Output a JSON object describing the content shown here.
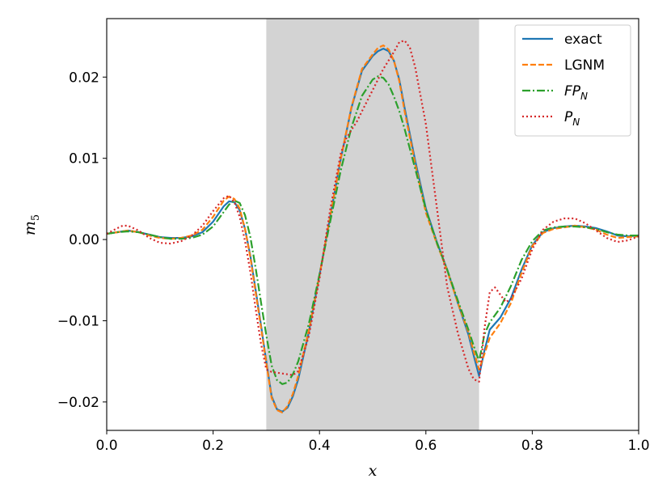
{
  "chart_data": {
    "type": "line",
    "xlabel": "x",
    "ylabel": "m5",
    "ylabel_main": "m",
    "ylabel_sub": "5",
    "xlim": [
      0.0,
      1.0
    ],
    "ylim": [
      -0.0235,
      0.0272
    ],
    "xticks": [
      0.0,
      0.2,
      0.4,
      0.6,
      0.8,
      1.0
    ],
    "xtick_labels": [
      "0.0",
      "0.2",
      "0.4",
      "0.6",
      "0.8",
      "1.0"
    ],
    "yticks": [
      -0.02,
      -0.01,
      0.0,
      0.01,
      0.02
    ],
    "ytick_labels": [
      "−0.02",
      "−0.01",
      "0.00",
      "0.01",
      "0.02"
    ],
    "shaded_region": {
      "x": [
        0.3,
        0.7
      ],
      "color": "#d3d3d3"
    },
    "legend_position": "top-right",
    "grid": false,
    "series": [
      {
        "name": "exact",
        "color": "#1f77b4",
        "style": "solid",
        "x": [
          0.0,
          0.02,
          0.04,
          0.06,
          0.08,
          0.1,
          0.12,
          0.14,
          0.16,
          0.18,
          0.2,
          0.22,
          0.23,
          0.24,
          0.25,
          0.26,
          0.27,
          0.28,
          0.29,
          0.3,
          0.31,
          0.32,
          0.33,
          0.34,
          0.35,
          0.36,
          0.38,
          0.4,
          0.42,
          0.44,
          0.46,
          0.48,
          0.5,
          0.51,
          0.52,
          0.53,
          0.54,
          0.55,
          0.56,
          0.58,
          0.6,
          0.62,
          0.64,
          0.66,
          0.68,
          0.69,
          0.7,
          0.71,
          0.72,
          0.74,
          0.76,
          0.78,
          0.8,
          0.82,
          0.84,
          0.86,
          0.88,
          0.9,
          0.92,
          0.94,
          0.96,
          0.98,
          1.0
        ],
        "y": [
          0.0007,
          0.0009,
          0.0011,
          0.0009,
          0.0006,
          0.0003,
          0.0002,
          0.0002,
          0.0004,
          0.0009,
          0.0022,
          0.0041,
          0.0047,
          0.0046,
          0.0036,
          0.0013,
          -0.002,
          -0.0062,
          -0.0105,
          -0.015,
          -0.0193,
          -0.0209,
          -0.0212,
          -0.0207,
          -0.0193,
          -0.0172,
          -0.0114,
          -0.0044,
          0.0028,
          0.0099,
          0.0162,
          0.0208,
          0.0226,
          0.0232,
          0.0235,
          0.0232,
          0.022,
          0.0197,
          0.0162,
          0.0097,
          0.0038,
          -0.0002,
          -0.0037,
          -0.0078,
          -0.0117,
          -0.0143,
          -0.0168,
          -0.0137,
          -0.0111,
          -0.0096,
          -0.0072,
          -0.0037,
          -0.0007,
          0.0009,
          0.0014,
          0.0016,
          0.0017,
          0.0016,
          0.0014,
          0.001,
          0.0005,
          0.0004,
          0.0005
        ]
      },
      {
        "name": "LGNM",
        "color": "#ff7f0e",
        "style": "dashed",
        "x": [
          0.0,
          0.02,
          0.04,
          0.06,
          0.08,
          0.1,
          0.12,
          0.14,
          0.16,
          0.18,
          0.2,
          0.22,
          0.23,
          0.24,
          0.25,
          0.26,
          0.27,
          0.28,
          0.29,
          0.3,
          0.31,
          0.32,
          0.33,
          0.34,
          0.35,
          0.36,
          0.38,
          0.4,
          0.42,
          0.44,
          0.46,
          0.48,
          0.5,
          0.51,
          0.52,
          0.53,
          0.54,
          0.55,
          0.56,
          0.58,
          0.6,
          0.62,
          0.64,
          0.66,
          0.68,
          0.69,
          0.7,
          0.71,
          0.72,
          0.74,
          0.76,
          0.78,
          0.8,
          0.82,
          0.84,
          0.86,
          0.88,
          0.9,
          0.92,
          0.94,
          0.96,
          0.98,
          1.0
        ],
        "y": [
          0.0007,
          0.0009,
          0.0011,
          0.0009,
          0.0005,
          0.0002,
          0.0001,
          0.0002,
          0.0005,
          0.0012,
          0.0028,
          0.0048,
          0.0053,
          0.005,
          0.0038,
          0.0013,
          -0.0022,
          -0.0065,
          -0.0108,
          -0.0152,
          -0.0195,
          -0.021,
          -0.0213,
          -0.0205,
          -0.019,
          -0.0168,
          -0.0112,
          -0.0044,
          0.0028,
          0.01,
          0.0163,
          0.021,
          0.0228,
          0.0236,
          0.0239,
          0.0234,
          0.022,
          0.0195,
          0.0158,
          0.0093,
          0.0033,
          -0.0004,
          -0.0038,
          -0.0078,
          -0.0114,
          -0.0138,
          -0.016,
          -0.0141,
          -0.0121,
          -0.0103,
          -0.0078,
          -0.0041,
          -0.0008,
          0.0008,
          0.0013,
          0.0015,
          0.0017,
          0.0015,
          0.0012,
          0.0006,
          0.0002,
          0.0003,
          0.0004
        ]
      },
      {
        "name": "FP_N",
        "color": "#2ca02c",
        "style": "dashdot",
        "x": [
          0.0,
          0.02,
          0.04,
          0.06,
          0.08,
          0.1,
          0.12,
          0.14,
          0.16,
          0.18,
          0.2,
          0.22,
          0.23,
          0.24,
          0.25,
          0.26,
          0.27,
          0.28,
          0.29,
          0.3,
          0.31,
          0.32,
          0.33,
          0.34,
          0.35,
          0.36,
          0.38,
          0.4,
          0.42,
          0.44,
          0.46,
          0.48,
          0.5,
          0.51,
          0.52,
          0.53,
          0.54,
          0.55,
          0.56,
          0.58,
          0.6,
          0.62,
          0.64,
          0.66,
          0.68,
          0.69,
          0.7,
          0.71,
          0.72,
          0.74,
          0.76,
          0.78,
          0.8,
          0.82,
          0.84,
          0.86,
          0.88,
          0.9,
          0.92,
          0.94,
          0.96,
          0.98,
          1.0
        ],
        "y": [
          0.0007,
          0.0009,
          0.001,
          0.0009,
          0.0006,
          0.0003,
          0.0001,
          0.0001,
          0.0002,
          0.0006,
          0.0016,
          0.0034,
          0.0043,
          0.0048,
          0.0045,
          0.003,
          0.0003,
          -0.0035,
          -0.0077,
          -0.0118,
          -0.0155,
          -0.0173,
          -0.0178,
          -0.0176,
          -0.0166,
          -0.015,
          -0.0104,
          -0.0043,
          0.0022,
          0.0085,
          0.0138,
          0.0177,
          0.0197,
          0.0201,
          0.0199,
          0.0191,
          0.0176,
          0.0158,
          0.0136,
          0.0087,
          0.0037,
          -0.0003,
          -0.0037,
          -0.0075,
          -0.0111,
          -0.0131,
          -0.015,
          -0.0117,
          -0.0102,
          -0.0084,
          -0.0057,
          -0.0025,
          -0.0002,
          0.0011,
          0.0015,
          0.0016,
          0.0016,
          0.0015,
          0.0013,
          0.0009,
          0.0006,
          0.0005,
          0.0005
        ]
      },
      {
        "name": "P_N",
        "color": "#d62728",
        "style": "dotted",
        "x": [
          0.0,
          0.02,
          0.03,
          0.04,
          0.06,
          0.08,
          0.1,
          0.12,
          0.14,
          0.16,
          0.18,
          0.2,
          0.22,
          0.23,
          0.24,
          0.25,
          0.26,
          0.27,
          0.28,
          0.29,
          0.3,
          0.31,
          0.32,
          0.33,
          0.34,
          0.35,
          0.36,
          0.38,
          0.4,
          0.42,
          0.44,
          0.45,
          0.46,
          0.47,
          0.48,
          0.5,
          0.52,
          0.54,
          0.55,
          0.56,
          0.57,
          0.58,
          0.6,
          0.62,
          0.64,
          0.66,
          0.68,
          0.69,
          0.7,
          0.71,
          0.72,
          0.73,
          0.74,
          0.75,
          0.76,
          0.78,
          0.8,
          0.82,
          0.84,
          0.86,
          0.88,
          0.9,
          0.92,
          0.94,
          0.96,
          0.98,
          1.0
        ],
        "y": [
          0.0007,
          0.0014,
          0.0017,
          0.0017,
          0.0011,
          0.0002,
          -0.0004,
          -0.0005,
          -0.0002,
          0.0005,
          0.0017,
          0.0035,
          0.0051,
          0.0054,
          0.0046,
          0.0028,
          -0.0002,
          -0.004,
          -0.0085,
          -0.0128,
          -0.016,
          -0.0163,
          -0.0164,
          -0.0165,
          -0.0166,
          -0.0167,
          -0.0162,
          -0.0119,
          -0.0048,
          0.0037,
          0.0106,
          0.0124,
          0.0135,
          0.0145,
          0.0158,
          0.0184,
          0.021,
          0.0231,
          0.0243,
          0.0245,
          0.0236,
          0.0212,
          0.0142,
          0.0042,
          -0.0058,
          -0.0115,
          -0.0159,
          -0.0172,
          -0.0175,
          -0.011,
          -0.0065,
          -0.0059,
          -0.0068,
          -0.0077,
          -0.0073,
          -0.0048,
          -0.0012,
          0.0012,
          0.0022,
          0.0026,
          0.0026,
          0.002,
          0.0011,
          0.0002,
          -0.0003,
          -0.0001,
          0.0004
        ]
      }
    ],
    "legend": [
      {
        "label": "exact",
        "main": "exact",
        "sub": ""
      },
      {
        "label": "LGNM",
        "main": "LGNM",
        "sub": ""
      },
      {
        "label": "FP_N",
        "main": "FP",
        "sub": "N"
      },
      {
        "label": "P_N",
        "main": "P",
        "sub": "N"
      }
    ]
  }
}
